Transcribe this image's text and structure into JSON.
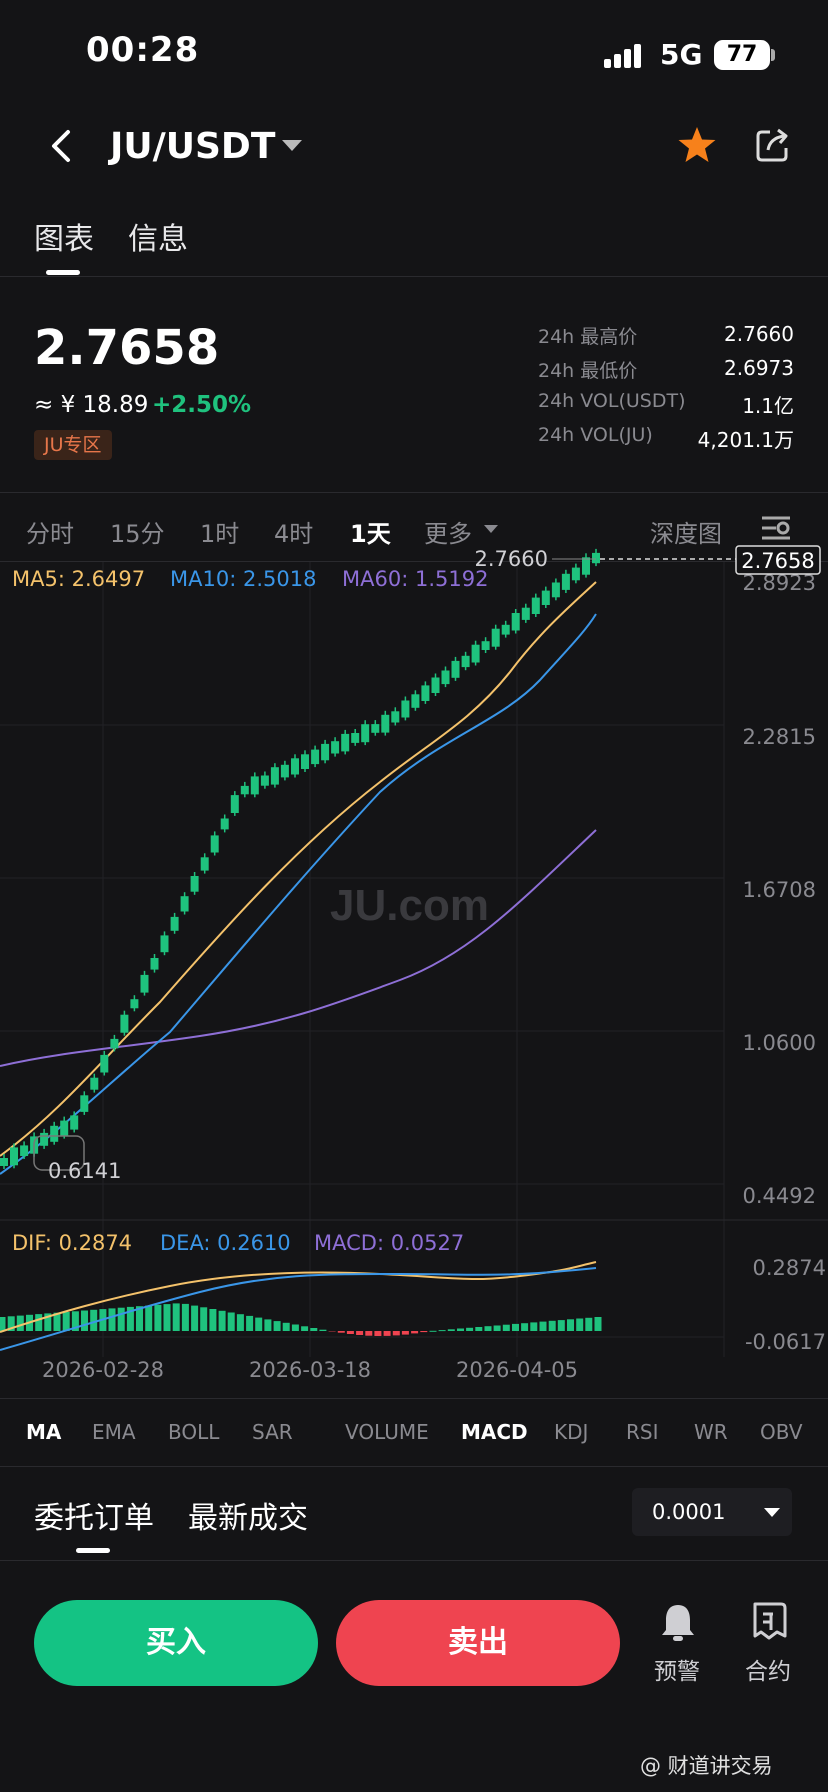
{
  "status_bar": {
    "time": "00:28",
    "network": "5G",
    "battery": "77"
  },
  "header": {
    "pair": "JU/USDT"
  },
  "top_tabs": [
    "图表",
    "信息"
  ],
  "price": {
    "last": "2.7658",
    "cny": "≈ ¥ 18.89",
    "change": "+2.50%",
    "zone_badge": "JU专区",
    "stats": [
      {
        "label": "24h 最高价",
        "value": "2.7660"
      },
      {
        "label": "24h 最低价",
        "value": "2.6973"
      },
      {
        "label": "24h VOL(USDT)",
        "value": "1.1亿"
      },
      {
        "label": "24h VOL(JU)",
        "value": "4,201.1万"
      }
    ]
  },
  "timeframes": {
    "items": [
      "分时",
      "15分",
      "1时",
      "4时",
      "1天",
      "更多"
    ],
    "active": "1天",
    "depth": "深度图"
  },
  "colors": {
    "up": "#1fc27e",
    "down": "#ef4450",
    "ma5": "#f4c26b",
    "ma10": "#3a96e8",
    "ma60": "#8e6fd6",
    "accent_star": "#f7811b"
  },
  "chart": {
    "ma_legend": {
      "ma5": "MA5: 2.6497",
      "ma10": "MA10: 2.5018",
      "ma60": "MA60: 1.5192"
    },
    "y_ticks": [
      "2.8923",
      "2.2815",
      "1.6708",
      "1.0600",
      "0.4492"
    ],
    "high_label": "2.7660",
    "low_label": "0.6141",
    "current_tag": "2.7658",
    "watermark": "JU.com",
    "macd_legend": {
      "dif": "DIF: 0.2874",
      "dea": "DEA: 0.2610",
      "macd": "MACD: 0.0527"
    },
    "macd_ticks": [
      "0.2874",
      "-0.0617"
    ],
    "x_ticks": [
      "2026-02-28",
      "2026-03-18",
      "2026-04-05"
    ]
  },
  "indicators": {
    "items": [
      "MA",
      "EMA",
      "BOLL",
      "SAR",
      "VOLUME",
      "MACD",
      "KDJ",
      "RSI",
      "WR",
      "OBV"
    ],
    "active": [
      "MA",
      "MACD"
    ]
  },
  "orderbook": {
    "tabs": [
      "委托订单",
      "最新成交"
    ],
    "precision": "0.0001"
  },
  "actions": {
    "buy": "买入",
    "sell": "卖出",
    "alert": "预警",
    "contract": "合约"
  },
  "credit": "@ 财道讲交易"
}
